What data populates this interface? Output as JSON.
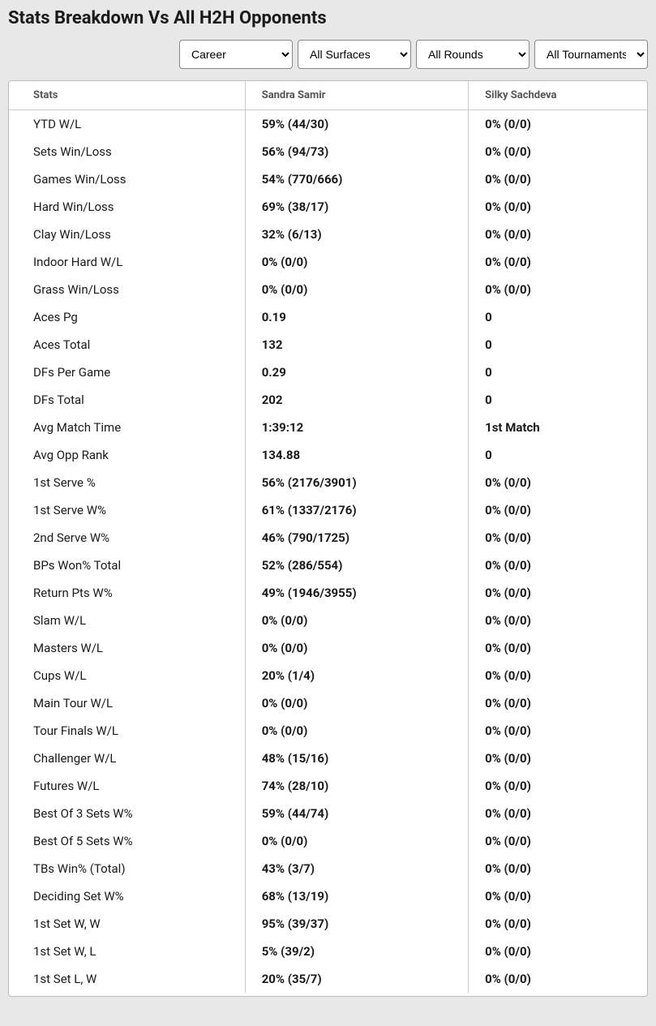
{
  "title": "Stats Breakdown Vs All H2H Opponents",
  "filters": {
    "career": {
      "selected": "Career"
    },
    "surfaces": {
      "selected": "All Surfaces"
    },
    "rounds": {
      "selected": "All Rounds"
    },
    "tournaments": {
      "selected": "All Tournaments"
    }
  },
  "table": {
    "headers": {
      "stats": "Stats",
      "player1": "Sandra Samir",
      "player2": "Silky Sachdeva"
    },
    "rows": [
      {
        "stat": "YTD W/L",
        "p1": "59% (44/30)",
        "p2": "0% (0/0)"
      },
      {
        "stat": "Sets Win/Loss",
        "p1": "56% (94/73)",
        "p2": "0% (0/0)"
      },
      {
        "stat": "Games Win/Loss",
        "p1": "54% (770/666)",
        "p2": "0% (0/0)"
      },
      {
        "stat": "Hard Win/Loss",
        "p1": "69% (38/17)",
        "p2": "0% (0/0)"
      },
      {
        "stat": "Clay Win/Loss",
        "p1": "32% (6/13)",
        "p2": "0% (0/0)"
      },
      {
        "stat": "Indoor Hard W/L",
        "p1": "0% (0/0)",
        "p2": "0% (0/0)"
      },
      {
        "stat": "Grass Win/Loss",
        "p1": "0% (0/0)",
        "p2": "0% (0/0)"
      },
      {
        "stat": "Aces Pg",
        "p1": "0.19",
        "p2": "0"
      },
      {
        "stat": "Aces Total",
        "p1": "132",
        "p2": "0"
      },
      {
        "stat": "DFs Per Game",
        "p1": "0.29",
        "p2": "0"
      },
      {
        "stat": "DFs Total",
        "p1": "202",
        "p2": "0"
      },
      {
        "stat": "Avg Match Time",
        "p1": "1:39:12",
        "p2": "1st Match"
      },
      {
        "stat": "Avg Opp Rank",
        "p1": "134.88",
        "p2": "0"
      },
      {
        "stat": "1st Serve %",
        "p1": "56% (2176/3901)",
        "p2": "0% (0/0)"
      },
      {
        "stat": "1st Serve W%",
        "p1": "61% (1337/2176)",
        "p2": "0% (0/0)"
      },
      {
        "stat": "2nd Serve W%",
        "p1": "46% (790/1725)",
        "p2": "0% (0/0)"
      },
      {
        "stat": "BPs Won% Total",
        "p1": "52% (286/554)",
        "p2": "0% (0/0)"
      },
      {
        "stat": "Return Pts W%",
        "p1": "49% (1946/3955)",
        "p2": "0% (0/0)"
      },
      {
        "stat": "Slam W/L",
        "p1": "0% (0/0)",
        "p2": "0% (0/0)"
      },
      {
        "stat": "Masters W/L",
        "p1": "0% (0/0)",
        "p2": "0% (0/0)"
      },
      {
        "stat": "Cups W/L",
        "p1": "20% (1/4)",
        "p2": "0% (0/0)"
      },
      {
        "stat": "Main Tour W/L",
        "p1": "0% (0/0)",
        "p2": "0% (0/0)"
      },
      {
        "stat": "Tour Finals W/L",
        "p1": "0% (0/0)",
        "p2": "0% (0/0)"
      },
      {
        "stat": "Challenger W/L",
        "p1": "48% (15/16)",
        "p2": "0% (0/0)"
      },
      {
        "stat": "Futures W/L",
        "p1": "74% (28/10)",
        "p2": "0% (0/0)"
      },
      {
        "stat": "Best Of 3 Sets W%",
        "p1": "59% (44/74)",
        "p2": "0% (0/0)"
      },
      {
        "stat": "Best Of 5 Sets W%",
        "p1": "0% (0/0)",
        "p2": "0% (0/0)"
      },
      {
        "stat": "TBs Win% (Total)",
        "p1": "43% (3/7)",
        "p2": "0% (0/0)"
      },
      {
        "stat": "Deciding Set W%",
        "p1": "68% (13/19)",
        "p2": "0% (0/0)"
      },
      {
        "stat": "1st Set W, W",
        "p1": "95% (39/37)",
        "p2": "0% (0/0)"
      },
      {
        "stat": "1st Set W, L",
        "p1": "5% (39/2)",
        "p2": "0% (0/0)"
      },
      {
        "stat": "1st Set L, W",
        "p1": "20% (35/7)",
        "p2": "0% (0/0)"
      }
    ]
  },
  "colors": {
    "page_bg": "#e8e8e8",
    "table_bg": "#ffffff",
    "border": "#cccccc",
    "text": "#1a1a1a",
    "header_text": "#555555"
  }
}
